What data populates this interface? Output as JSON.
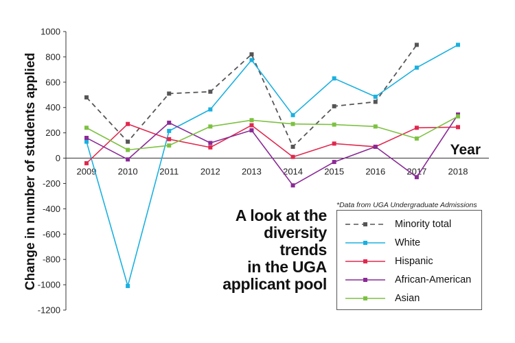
{
  "chart_data": {
    "type": "line",
    "title": "A look at the diversity trends in the UGA applicant pool",
    "title_lines": [
      "A look at the",
      "diversity trends",
      "in the UGA",
      "applicant pool"
    ],
    "source_note": "*Data from UGA Undergraduate Admissions",
    "xlabel": "Year",
    "ylabel": "Change in number of students applied",
    "x": [
      "2009",
      "2010",
      "2011",
      "2012",
      "2013",
      "2014",
      "2015",
      "2016",
      "2017",
      "2018"
    ],
    "ylim": [
      -1200,
      1000
    ],
    "yticks": [
      "1000",
      "800",
      "600",
      "400",
      "200",
      "0",
      "-200",
      "-400",
      "-600",
      "-800",
      "-1000",
      "-1200"
    ],
    "grid": false,
    "legend_position": "bottom-right",
    "series": [
      {
        "name": "Minority total",
        "color": "#555555",
        "dashed": true,
        "values": [
          480,
          130,
          510,
          525,
          820,
          90,
          410,
          445,
          895,
          null
        ]
      },
      {
        "name": "White",
        "color": "#1ab0e0",
        "dashed": false,
        "values": [
          130,
          -1010,
          215,
          385,
          775,
          340,
          630,
          485,
          715,
          895
        ]
      },
      {
        "name": "Hispanic",
        "color": "#e0284e",
        "dashed": false,
        "values": [
          -40,
          270,
          150,
          85,
          260,
          10,
          115,
          90,
          240,
          245
        ]
      },
      {
        "name": "African-American",
        "color": "#8a2a96",
        "dashed": false,
        "values": [
          160,
          -10,
          280,
          120,
          220,
          -215,
          -30,
          90,
          -150,
          345
        ]
      },
      {
        "name": "Asian",
        "color": "#7dc142",
        "dashed": false,
        "values": [
          240,
          65,
          100,
          250,
          300,
          270,
          265,
          250,
          155,
          330
        ]
      }
    ]
  }
}
